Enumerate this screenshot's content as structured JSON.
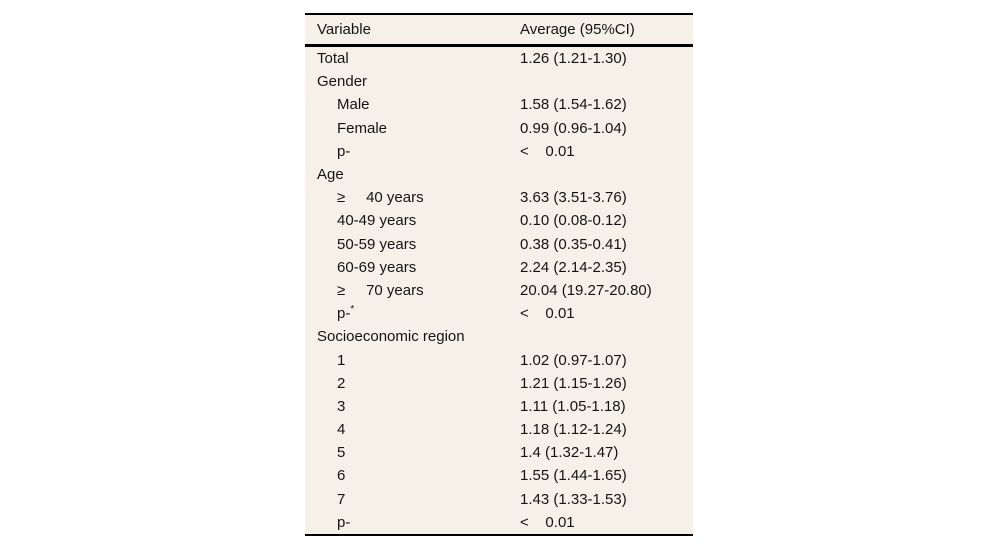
{
  "colors": {
    "page_background": "#ffffff",
    "table_background": "#f5f1e8",
    "rule_color": "#000000",
    "text_color": "#141414"
  },
  "table": {
    "header": {
      "variable_label": "Variable",
      "average_label": "Average (95%CI)"
    },
    "rows": [
      {
        "label": "Total",
        "sup": "",
        "value": "1.26 (1.21-1.30)",
        "indent": 0
      },
      {
        "label": "Gender",
        "sup": "",
        "value": "",
        "indent": 0
      },
      {
        "label": "Male",
        "sup": "",
        "value": "1.58 (1.54-1.62)",
        "indent": 1
      },
      {
        "label": "Female",
        "sup": "",
        "value": "0.99 (0.96-1.04)",
        "indent": 1
      },
      {
        "label": "p-",
        "sup": "",
        "value": "<    0.01",
        "indent": 1
      },
      {
        "label": "Age",
        "sup": "",
        "value": "",
        "indent": 0
      },
      {
        "label": "≥     40 years",
        "sup": "",
        "value": "3.63 (3.51-3.76)",
        "indent": 1
      },
      {
        "label": "40-49 years",
        "sup": "",
        "value": "0.10 (0.08-0.12)",
        "indent": 1
      },
      {
        "label": "50-59 years",
        "sup": "",
        "value": "0.38 (0.35-0.41)",
        "indent": 1
      },
      {
        "label": "60-69 years",
        "sup": "",
        "value": "2.24 (2.14-2.35)",
        "indent": 1
      },
      {
        "label": "≥     70 years",
        "sup": "",
        "value": "20.04 (19.27-20.80)",
        "indent": 1
      },
      {
        "label": "p-",
        "sup": "*",
        "value": "<    0.01",
        "indent": 1
      },
      {
        "label": "Socioeconomic region",
        "sup": "",
        "value": "",
        "indent": 0
      },
      {
        "label": "1",
        "sup": "",
        "value": "1.02 (0.97-1.07)",
        "indent": 1
      },
      {
        "label": "2",
        "sup": "",
        "value": "1.21 (1.15-1.26)",
        "indent": 1
      },
      {
        "label": "3",
        "sup": "",
        "value": "1.11 (1.05-1.18)",
        "indent": 1
      },
      {
        "label": "4",
        "sup": "",
        "value": "1.18 (1.12-1.24)",
        "indent": 1
      },
      {
        "label": "5",
        "sup": "",
        "value": "1.4 (1.32-1.47)",
        "indent": 1
      },
      {
        "label": "6",
        "sup": "",
        "value": "1.55 (1.44-1.65)",
        "indent": 1
      },
      {
        "label": "7",
        "sup": "",
        "value": "1.43 (1.33-1.53)",
        "indent": 1
      },
      {
        "label": "p-",
        "sup": "",
        "value": "<    0.01",
        "indent": 1
      }
    ]
  }
}
